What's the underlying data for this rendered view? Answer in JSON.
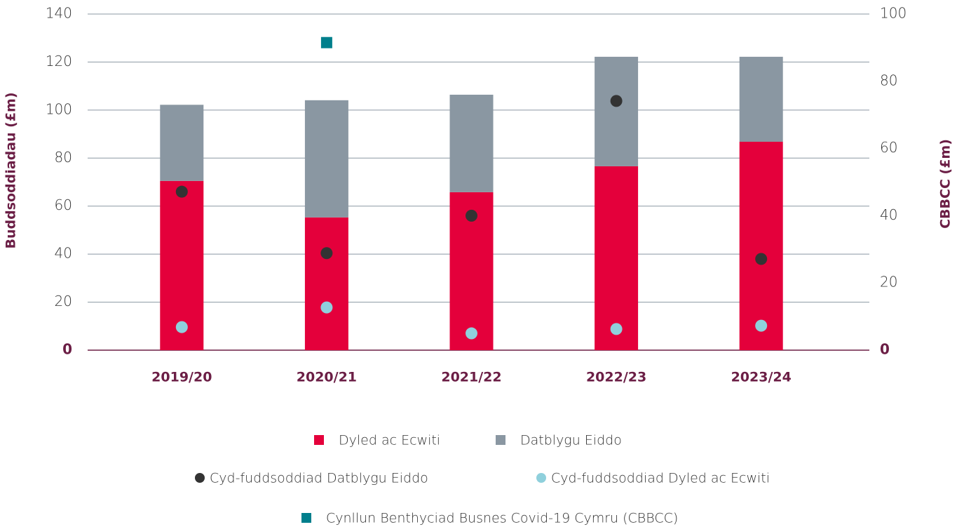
{
  "chart_data": {
    "type": "bar",
    "stacked": true,
    "ylabel": "Buddsoddiadau (£m)",
    "y2label": "CBBCC (£m)",
    "categories": [
      "2019/20",
      "2020/21",
      "2021/22",
      "2022/23",
      "2023/24"
    ],
    "ylim": [
      0,
      140
    ],
    "yticks": [
      0,
      20,
      40,
      60,
      80,
      100,
      120,
      140
    ],
    "y2lim": [
      0,
      100
    ],
    "y2ticks": [
      0,
      20,
      40,
      60,
      80,
      100
    ],
    "grid": true,
    "legend": "bottom",
    "series": [
      {
        "name": "Dyled ac Ecwiti",
        "type": "bar",
        "color": "#e4003b",
        "values": [
          70.5,
          55.3,
          65.8,
          76.6,
          86.8
        ]
      },
      {
        "name": "Datblygu Eiddo",
        "type": "bar",
        "color": "#8a97a2",
        "values": [
          31.7,
          48.8,
          40.6,
          45.6,
          35.4
        ]
      },
      {
        "name": "Cyd-fuddsoddiad Datblygu Eiddo",
        "type": "circle",
        "color": "#333333",
        "values": [
          66,
          40.4,
          56,
          103.8,
          38
        ]
      },
      {
        "name": "Cyd-fuddsoddiad Dyled ac Ecwiti",
        "type": "circle",
        "color": "#8fd0dc",
        "values": [
          9.6,
          17.8,
          7,
          8.8,
          10.2
        ]
      },
      {
        "name": "Cynllun Benthyciad Busnes Covid-19 Cymru (CBBCC)",
        "type": "square",
        "color": "#007f8c",
        "axis": "y2",
        "values": [
          null,
          91.5,
          null,
          null,
          null
        ]
      }
    ]
  }
}
